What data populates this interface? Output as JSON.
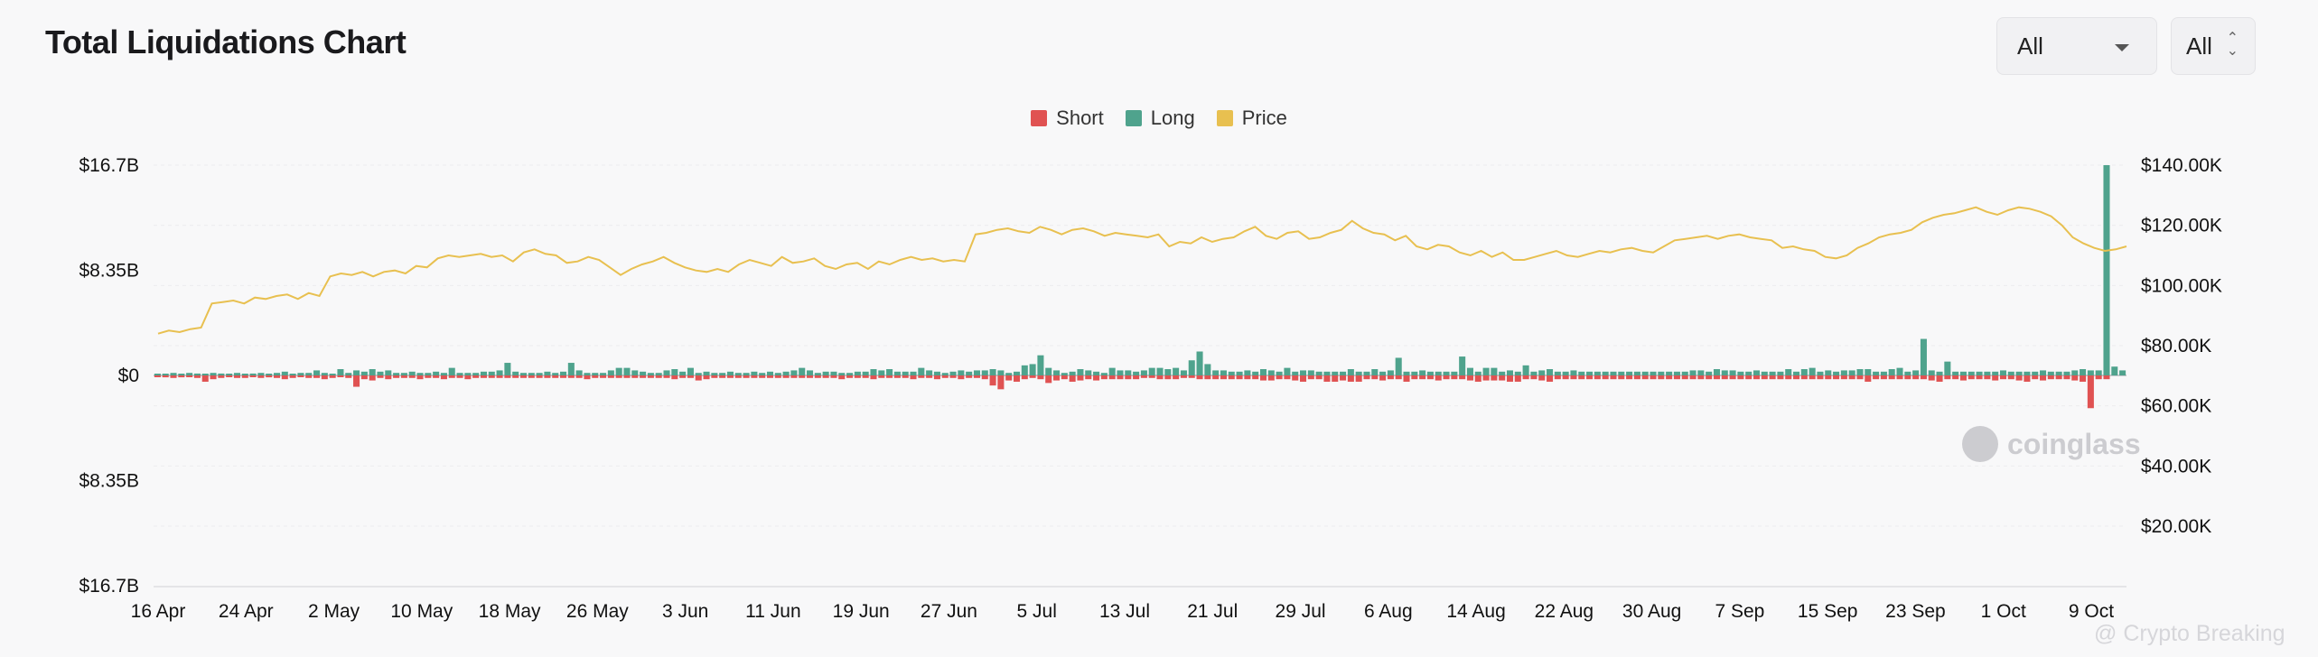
{
  "header": {
    "title": "Total Liquidations Chart",
    "range_select": "All",
    "coin_select": "All"
  },
  "legend": [
    {
      "label": "Short",
      "color": "#e05252"
    },
    {
      "label": "Long",
      "color": "#4fa38d"
    },
    {
      "label": "Price",
      "color": "#e8c050"
    }
  ],
  "watermark": "coinglass",
  "corner_mark": "@ Crypto Breaking",
  "chart_data": {
    "type": "bar",
    "title": "Total Liquidations Chart",
    "left_axis": {
      "ticks": [
        "$16.7B",
        "$8.35B",
        "$0",
        "$8.35B",
        "$16.7B"
      ],
      "values": [
        16.7,
        8.35,
        0,
        -8.35,
        -16.7
      ],
      "unit": "B USD"
    },
    "right_axis": {
      "ticks": [
        "$140.00K",
        "$120.00K",
        "$100.00K",
        "$80.00K",
        "$60.00K",
        "$40.00K",
        "$20.00K"
      ],
      "values": [
        140000,
        120000,
        100000,
        80000,
        60000,
        40000,
        20000
      ]
    },
    "x_ticks": [
      "16 Apr",
      "24 Apr",
      "2 May",
      "10 May",
      "18 May",
      "26 May",
      "3 Jun",
      "11 Jun",
      "19 Jun",
      "27 Jun",
      "5 Jul",
      "13 Jul",
      "21 Jul",
      "29 Jul",
      "6 Aug",
      "14 Aug",
      "22 Aug",
      "30 Aug",
      "7 Sep",
      "15 Sep",
      "23 Sep",
      "1 Oct",
      "9 Oct"
    ],
    "grid": true,
    "legend_position": "top-center",
    "series": [
      {
        "name": "Long",
        "color": "#4fa38d",
        "values": [
          0.1,
          0.1,
          0.2,
          0.1,
          0.2,
          0.15,
          0.1,
          0.2,
          0.15,
          0.1,
          0.2,
          0.1,
          0.15,
          0.2,
          0.1,
          0.2,
          0.3,
          0.1,
          0.2,
          0.2,
          0.4,
          0.2,
          0.1,
          0.5,
          0.2,
          0.4,
          0.3,
          0.5,
          0.3,
          0.4,
          0.2,
          0.2,
          0.3,
          0.2,
          0.2,
          0.3,
          0.2,
          0.6,
          0.2,
          0.2,
          0.2,
          0.3,
          0.3,
          0.4,
          1.0,
          0.3,
          0.2,
          0.2,
          0.2,
          0.3,
          0.2,
          0.3,
          1.0,
          0.4,
          0.2,
          0.2,
          0.2,
          0.4,
          0.6,
          0.6,
          0.4,
          0.3,
          0.2,
          0.2,
          0.4,
          0.5,
          0.3,
          0.6,
          0.2,
          0.3,
          0.2,
          0.2,
          0.3,
          0.2,
          0.2,
          0.3,
          0.2,
          0.3,
          0.2,
          0.3,
          0.4,
          0.6,
          0.4,
          0.2,
          0.3,
          0.3,
          0.2,
          0.2,
          0.3,
          0.3,
          0.5,
          0.4,
          0.5,
          0.3,
          0.3,
          0.3,
          0.6,
          0.4,
          0.3,
          0.2,
          0.3,
          0.4,
          0.3,
          0.4,
          0.4,
          0.5,
          0.4,
          0.2,
          0.3,
          0.8,
          0.9,
          1.6,
          0.6,
          0.4,
          0.2,
          0.3,
          0.5,
          0.4,
          0.3,
          0.2,
          0.6,
          0.4,
          0.4,
          0.3,
          0.4,
          0.6,
          0.6,
          0.5,
          0.6,
          0.4,
          1.2,
          1.9,
          0.9,
          0.4,
          0.4,
          0.3,
          0.3,
          0.4,
          0.3,
          0.5,
          0.4,
          0.3,
          0.6,
          0.3,
          0.4,
          0.4,
          0.3,
          0.3,
          0.3,
          0.3,
          0.5,
          0.3,
          0.3,
          0.5,
          0.3,
          0.4,
          1.4,
          0.3,
          0.3,
          0.4,
          0.3,
          0.3,
          0.3,
          0.3,
          1.5,
          0.6,
          0.3,
          0.6,
          0.6,
          0.3,
          0.4,
          0.3,
          0.8,
          0.3,
          0.4,
          0.5,
          0.3,
          0.3,
          0.4,
          0.3,
          0.3,
          0.3,
          0.3,
          0.3,
          0.3,
          0.3,
          0.3,
          0.3,
          0.3,
          0.3,
          0.3,
          0.3,
          0.3,
          0.4,
          0.4,
          0.3,
          0.5,
          0.4,
          0.4,
          0.3,
          0.3,
          0.4,
          0.3,
          0.3,
          0.3,
          0.5,
          0.3,
          0.5,
          0.6,
          0.3,
          0.4,
          0.3,
          0.4,
          0.4,
          0.5,
          0.5,
          0.3,
          0.3,
          0.5,
          0.6,
          0.3,
          0.4,
          2.9,
          0.4,
          0.3,
          1.1,
          0.3,
          0.3,
          0.3,
          0.3,
          0.3,
          0.3,
          0.4,
          0.3,
          0.3,
          0.3,
          0.3,
          0.4,
          0.3,
          0.3,
          0.3,
          0.4,
          0.5,
          0.4,
          0.4,
          16.7,
          0.7,
          0.4
        ]
      },
      {
        "name": "Short",
        "color": "#e05252",
        "values": [
          -0.1,
          -0.15,
          -0.2,
          -0.15,
          -0.1,
          -0.2,
          -0.5,
          -0.3,
          -0.2,
          -0.1,
          -0.2,
          -0.2,
          -0.1,
          -0.2,
          -0.15,
          -0.2,
          -0.3,
          -0.2,
          -0.1,
          -0.2,
          -0.2,
          -0.3,
          -0.2,
          -0.1,
          -0.2,
          -0.9,
          -0.3,
          -0.4,
          -0.2,
          -0.3,
          -0.2,
          -0.2,
          -0.2,
          -0.3,
          -0.2,
          -0.2,
          -0.3,
          -0.2,
          -0.2,
          -0.3,
          -0.2,
          -0.2,
          -0.2,
          -0.2,
          -0.2,
          -0.2,
          -0.2,
          -0.2,
          -0.2,
          -0.2,
          -0.2,
          -0.2,
          -0.2,
          -0.2,
          -0.3,
          -0.2,
          -0.2,
          -0.2,
          -0.2,
          -0.2,
          -0.2,
          -0.2,
          -0.2,
          -0.2,
          -0.2,
          -0.3,
          -0.2,
          -0.2,
          -0.4,
          -0.3,
          -0.2,
          -0.2,
          -0.2,
          -0.2,
          -0.2,
          -0.2,
          -0.2,
          -0.2,
          -0.2,
          -0.2,
          -0.2,
          -0.2,
          -0.2,
          -0.2,
          -0.2,
          -0.2,
          -0.3,
          -0.2,
          -0.2,
          -0.2,
          -0.3,
          -0.2,
          -0.2,
          -0.2,
          -0.2,
          -0.3,
          -0.2,
          -0.2,
          -0.3,
          -0.2,
          -0.2,
          -0.3,
          -0.2,
          -0.2,
          -0.3,
          -0.8,
          -1.1,
          -0.4,
          -0.5,
          -0.3,
          -0.2,
          -0.3,
          -0.6,
          -0.4,
          -0.3,
          -0.5,
          -0.4,
          -0.3,
          -0.4,
          -0.3,
          -0.3,
          -0.3,
          -0.3,
          -0.3,
          -0.2,
          -0.2,
          -0.3,
          -0.3,
          -0.3,
          -0.2,
          -0.2,
          -0.3,
          -0.3,
          -0.3,
          -0.3,
          -0.3,
          -0.3,
          -0.3,
          -0.3,
          -0.4,
          -0.4,
          -0.3,
          -0.3,
          -0.4,
          -0.5,
          -0.3,
          -0.3,
          -0.5,
          -0.5,
          -0.4,
          -0.5,
          -0.5,
          -0.3,
          -0.3,
          -0.4,
          -0.3,
          -0.3,
          -0.5,
          -0.3,
          -0.3,
          -0.3,
          -0.4,
          -0.3,
          -0.3,
          -0.3,
          -0.4,
          -0.5,
          -0.4,
          -0.4,
          -0.4,
          -0.5,
          -0.5,
          -0.3,
          -0.3,
          -0.4,
          -0.5,
          -0.3,
          -0.3,
          -0.3,
          -0.3,
          -0.3,
          -0.3,
          -0.3,
          -0.3,
          -0.3,
          -0.3,
          -0.3,
          -0.3,
          -0.3,
          -0.3,
          -0.3,
          -0.3,
          -0.3,
          -0.3,
          -0.3,
          -0.3,
          -0.3,
          -0.3,
          -0.3,
          -0.3,
          -0.3,
          -0.3,
          -0.3,
          -0.3,
          -0.3,
          -0.3,
          -0.3,
          -0.3,
          -0.3,
          -0.3,
          -0.3,
          -0.3,
          -0.3,
          -0.3,
          -0.3,
          -0.5,
          -0.3,
          -0.3,
          -0.3,
          -0.3,
          -0.3,
          -0.3,
          -0.3,
          -0.4,
          -0.5,
          -0.3,
          -0.3,
          -0.4,
          -0.3,
          -0.3,
          -0.3,
          -0.4,
          -0.3,
          -0.3,
          -0.4,
          -0.5,
          -0.3,
          -0.4,
          -0.3,
          -0.3,
          -0.3,
          -0.4,
          -0.5,
          -2.6,
          -0.3,
          -0.3
        ]
      },
      {
        "name": "Price",
        "color": "#e8c050",
        "axis": "right",
        "values": [
          84000,
          85000,
          84500,
          85500,
          86000,
          94000,
          94500,
          95000,
          94000,
          96000,
          95500,
          96500,
          97000,
          95500,
          97500,
          96500,
          103000,
          104000,
          103500,
          104500,
          103000,
          104500,
          105000,
          104000,
          106500,
          106000,
          109000,
          110000,
          109500,
          110000,
          110500,
          109500,
          110000,
          108000,
          111000,
          112000,
          110500,
          110000,
          107500,
          108000,
          109500,
          108500,
          106000,
          103500,
          105500,
          107000,
          108000,
          109500,
          107500,
          106000,
          105000,
          104500,
          105500,
          104500,
          107000,
          108500,
          107500,
          106500,
          109500,
          107500,
          108000,
          109000,
          106500,
          105500,
          107000,
          107500,
          105500,
          108000,
          107000,
          108500,
          109500,
          108500,
          109000,
          108000,
          108500,
          108000,
          117000,
          117500,
          118500,
          119000,
          118000,
          117500,
          119500,
          118500,
          117000,
          118500,
          119000,
          118000,
          116500,
          117500,
          117000,
          116500,
          116000,
          117000,
          113000,
          114500,
          114000,
          116000,
          114500,
          115500,
          116000,
          118000,
          119500,
          116500,
          115500,
          117500,
          118000,
          115500,
          116000,
          117500,
          118500,
          121500,
          119000,
          117500,
          117000,
          115000,
          116500,
          113000,
          112000,
          113500,
          113000,
          111000,
          110000,
          111500,
          109500,
          111000,
          108500,
          108500,
          109500,
          110500,
          111500,
          110000,
          109500,
          110500,
          111500,
          111000,
          112000,
          112500,
          111500,
          111000,
          113000,
          115000,
          115500,
          116000,
          116500,
          115500,
          116500,
          117000,
          116000,
          115500,
          115000,
          112500,
          113000,
          112000,
          111500,
          109500,
          109000,
          110000,
          112500,
          114000,
          116000,
          117000,
          117500,
          118500,
          121000,
          122500,
          123500,
          124000,
          125000,
          126000,
          124500,
          123500,
          125000,
          126000,
          125500,
          124500,
          123000,
          120000,
          116000,
          114000,
          112500,
          111500,
          112000,
          113000
        ]
      }
    ]
  }
}
